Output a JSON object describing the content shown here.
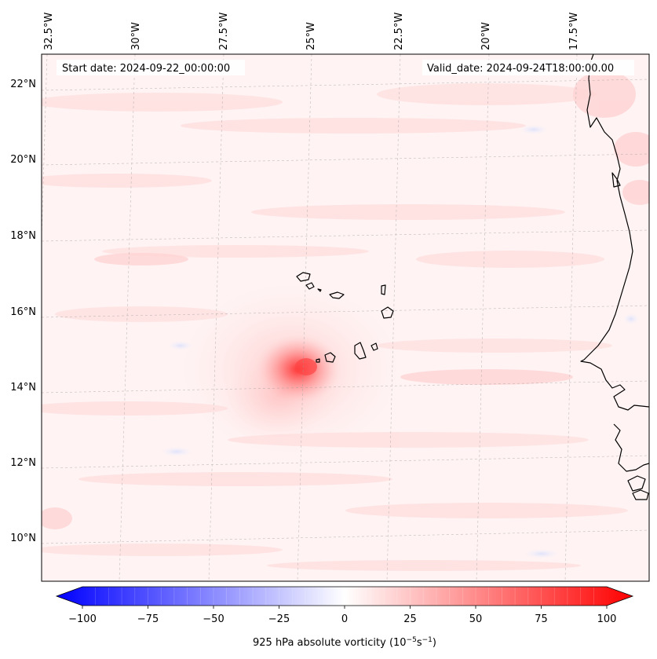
{
  "header": {
    "start_date": "Start date: 2024-09-22_00:00:00",
    "valid_date": "Valid_date: 2024-09-24T18:00:00.00"
  },
  "map": {
    "longitude_labels": [
      "32.5°W",
      "30°W",
      "27.5°W",
      "25°W",
      "22.5°W",
      "20°W",
      "17.5°W"
    ],
    "latitude_labels": [
      "22°N",
      "20°N",
      "18°N",
      "16°N",
      "14°N",
      "12°N",
      "10°N"
    ],
    "longitude_values": [
      -32.5,
      -30,
      -27.5,
      -25,
      -22.5,
      -20,
      -17.5
    ],
    "latitude_values": [
      22,
      20,
      18,
      16,
      14,
      12,
      10
    ],
    "features": {
      "vortex": "cyclonic vorticity maximum west of the Cape Verde islands",
      "coastline": "West African coast",
      "islands": "Cape Verde islands"
    }
  },
  "colorbar": {
    "title": "925 hPa absolute vorticity (10",
    "title_exp1": "−5",
    "title_mid": "s",
    "title_exp2": "−1",
    "title_end": ")",
    "tick_labels": [
      "−100",
      "−75",
      "−50",
      "−25",
      "0",
      "25",
      "50",
      "75",
      "100"
    ],
    "range": [
      -100,
      100
    ],
    "levels": 41,
    "colors": {
      "low": "#0000ff",
      "mid": "#ffffff",
      "high": "#ff0000"
    }
  }
}
